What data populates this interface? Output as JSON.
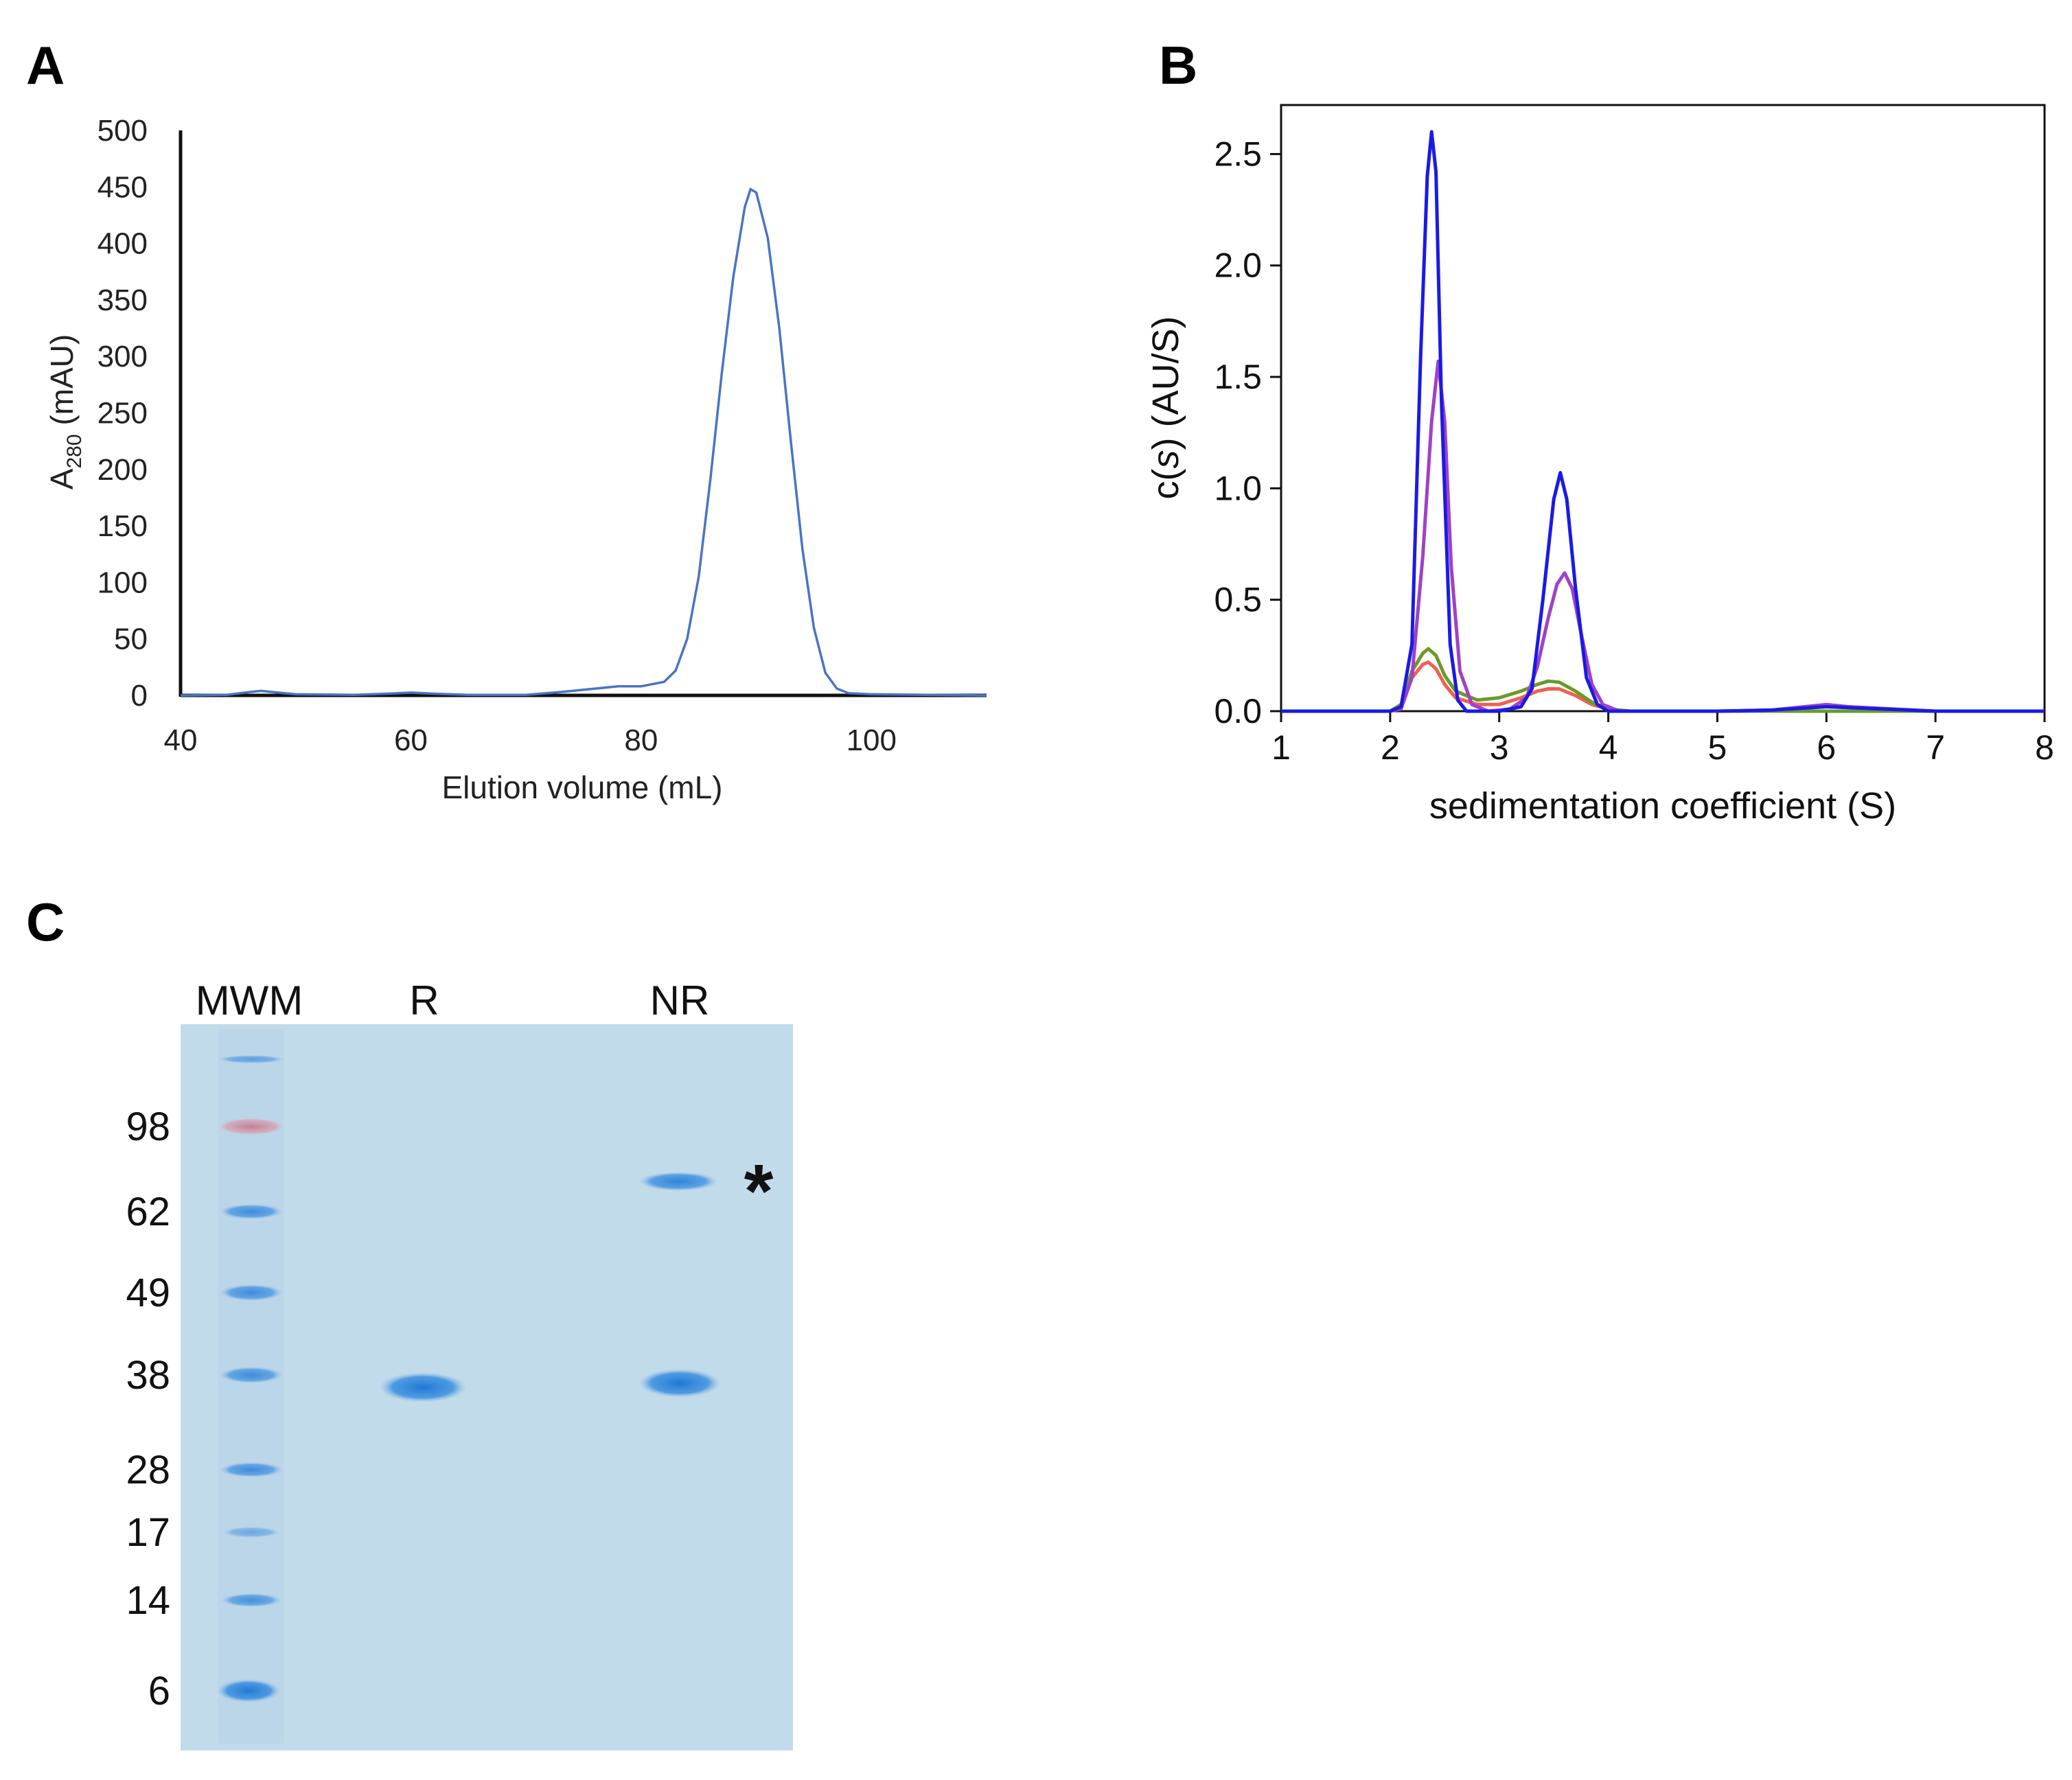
{
  "panels": {
    "a": "A",
    "b": "B",
    "c": "C"
  },
  "chart_data": [
    {
      "id": "A",
      "type": "line",
      "title": "",
      "xlabel": "Elution volume (mL)",
      "ylabel_main": "A",
      "ylabel_sub": "280",
      "ylabel_rest": " (mAU)",
      "xlim": [
        40,
        110
      ],
      "ylim": [
        0,
        500
      ],
      "xticks": [
        40,
        60,
        80,
        100
      ],
      "yticks": [
        0,
        50,
        100,
        150,
        200,
        250,
        300,
        350,
        400,
        450,
        500
      ],
      "grid": false,
      "legend": "none",
      "series": [
        {
          "name": "A280",
          "color": "#4a74c4",
          "x": [
            40,
            44,
            46,
            47,
            48,
            50,
            55,
            58,
            60,
            62,
            65,
            70,
            73,
            76,
            78,
            80,
            82,
            83,
            84,
            85,
            86,
            87,
            88,
            89,
            89.5,
            90,
            91,
            92,
            93,
            94,
            95,
            96,
            97,
            98,
            100,
            105,
            110
          ],
          "y": [
            0,
            0.5,
            3,
            4,
            3,
            1,
            0.5,
            1.5,
            2.5,
            1.5,
            0.5,
            0.5,
            3,
            6,
            8,
            8,
            12,
            22,
            50,
            105,
            190,
            285,
            370,
            432,
            448,
            445,
            405,
            325,
            225,
            130,
            60,
            20,
            6,
            2,
            1,
            0.5,
            0
          ]
        }
      ]
    },
    {
      "id": "B",
      "type": "line",
      "title": "",
      "xlabel": "sedimentation coefficient (S)",
      "ylabel_pre": "c(",
      "ylabel_ital": "s",
      "ylabel_post": ") (AU/S)",
      "xlim": [
        1,
        8
      ],
      "ylim": [
        0,
        2.72
      ],
      "xticks": [
        1,
        2,
        3,
        4,
        5,
        6,
        7,
        8
      ],
      "yticks": [
        0.0,
        0.5,
        1.0,
        1.5,
        2.0,
        2.5
      ],
      "ytick_labels": [
        "0.0",
        "0.5",
        "1.0",
        "1.5",
        "2.0",
        "2.5"
      ],
      "grid": false,
      "legend": "none",
      "series": [
        {
          "name": "blue",
          "color": "#1a1ae6",
          "x": [
            1,
            2.0,
            2.1,
            2.2,
            2.28,
            2.34,
            2.38,
            2.42,
            2.47,
            2.55,
            2.62,
            2.7,
            2.8,
            3.0,
            3.2,
            3.3,
            3.4,
            3.5,
            3.56,
            3.62,
            3.7,
            3.8,
            3.9,
            4.0,
            4.2,
            5,
            5.5,
            6,
            6.5,
            7,
            8
          ],
          "y": [
            0,
            0,
            0.02,
            0.3,
            1.6,
            2.4,
            2.6,
            2.42,
            1.4,
            0.3,
            0.05,
            0,
            0,
            0,
            0.02,
            0.1,
            0.5,
            0.95,
            1.07,
            0.95,
            0.55,
            0.15,
            0.03,
            0,
            0,
            0,
            0.005,
            0.02,
            0.01,
            0,
            0
          ]
        },
        {
          "name": "purple",
          "color": "#a040c8",
          "x": [
            1,
            2.0,
            2.1,
            2.2,
            2.3,
            2.38,
            2.44,
            2.5,
            2.56,
            2.64,
            2.75,
            2.9,
            3.1,
            3.25,
            3.35,
            3.45,
            3.53,
            3.6,
            3.67,
            3.75,
            3.85,
            3.95,
            4.1,
            4.4,
            5,
            5.5,
            5.8,
            6.0,
            6.2,
            6.6,
            7,
            8
          ],
          "y": [
            0,
            0,
            0.01,
            0.15,
            0.7,
            1.3,
            1.57,
            1.3,
            0.65,
            0.18,
            0.03,
            0,
            0.01,
            0.06,
            0.2,
            0.42,
            0.57,
            0.62,
            0.55,
            0.35,
            0.12,
            0.03,
            0,
            0,
            0,
            0.005,
            0.02,
            0.03,
            0.02,
            0.01,
            0,
            0
          ]
        },
        {
          "name": "green",
          "color": "#6a9a2a",
          "x": [
            1,
            2.0,
            2.1,
            2.2,
            2.3,
            2.35,
            2.42,
            2.5,
            2.6,
            2.8,
            3.0,
            3.2,
            3.35,
            3.45,
            3.55,
            3.7,
            3.85,
            4.0,
            4.2,
            5,
            8
          ],
          "y": [
            0,
            0,
            0.03,
            0.18,
            0.26,
            0.28,
            0.25,
            0.16,
            0.09,
            0.05,
            0.06,
            0.09,
            0.12,
            0.135,
            0.13,
            0.09,
            0.04,
            0.01,
            0,
            0,
            0
          ]
        },
        {
          "name": "red",
          "color": "#f06050",
          "x": [
            1,
            2.0,
            2.1,
            2.2,
            2.3,
            2.35,
            2.42,
            2.5,
            2.6,
            2.8,
            3.0,
            3.2,
            3.35,
            3.45,
            3.55,
            3.7,
            3.85,
            4.0,
            4.2,
            5,
            8
          ],
          "y": [
            0,
            0,
            0.03,
            0.15,
            0.21,
            0.22,
            0.19,
            0.12,
            0.06,
            0.03,
            0.03,
            0.06,
            0.09,
            0.1,
            0.1,
            0.07,
            0.03,
            0.01,
            0,
            0,
            0
          ]
        }
      ]
    }
  ],
  "gel": {
    "lanes": [
      "MWM",
      "R",
      "NR"
    ],
    "mw_markers": [
      "98",
      "62",
      "49",
      "38",
      "28",
      "17",
      "14",
      "6"
    ],
    "asterisk": "*"
  }
}
